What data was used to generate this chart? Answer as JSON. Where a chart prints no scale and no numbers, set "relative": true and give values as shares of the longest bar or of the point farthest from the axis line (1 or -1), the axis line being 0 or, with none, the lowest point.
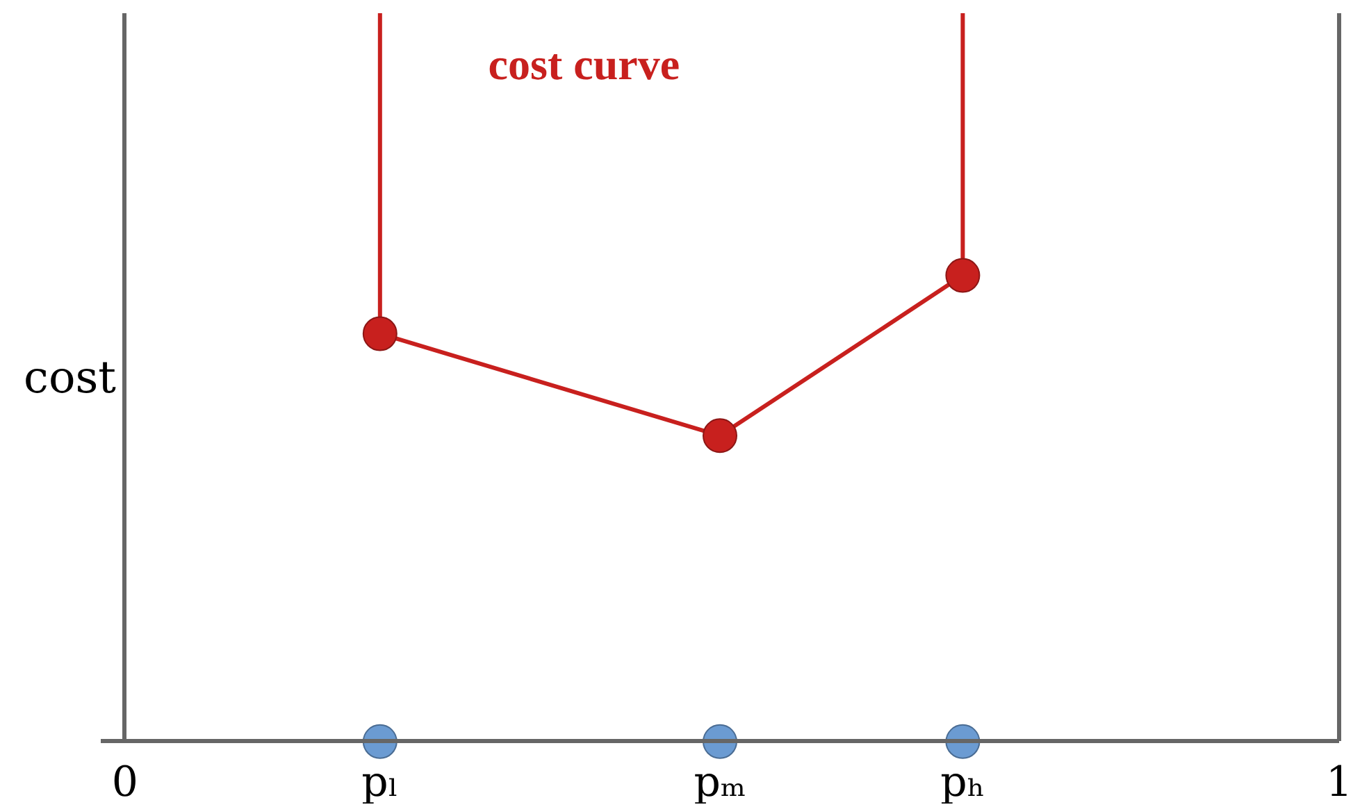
{
  "chart_data": {
    "type": "line",
    "ylabel": "cost",
    "relative": true,
    "xlim": [
      -0.02,
      1
    ],
    "xticks": [
      0,
      {
        "value": 0.21,
        "label": "pₗ"
      },
      {
        "value": 0.49,
        "label": "pₘ"
      },
      {
        "value": 0.69,
        "label": "pₕ"
      },
      1
    ],
    "tick_labels": "x",
    "series": [
      {
        "name": "cost curve",
        "color": "#c8201e",
        "x": [
          0.21,
          0.21,
          0.49,
          0.69,
          0.69
        ],
        "values": [
          1,
          0.56,
          0.42,
          0.64,
          1
        ]
      },
      {
        "type": "scatter",
        "marker": "circle",
        "color": "#c8201e",
        "x": [
          0.21,
          0.49,
          0.69
        ],
        "values": [
          0.56,
          0.42,
          0.64
        ]
      },
      {
        "type": "scatter",
        "marker": "circle",
        "color": "#6b9bd2",
        "x": [
          0.21,
          0.49,
          0.69
        ],
        "values": [
          0,
          0,
          0
        ]
      }
    ]
  }
}
